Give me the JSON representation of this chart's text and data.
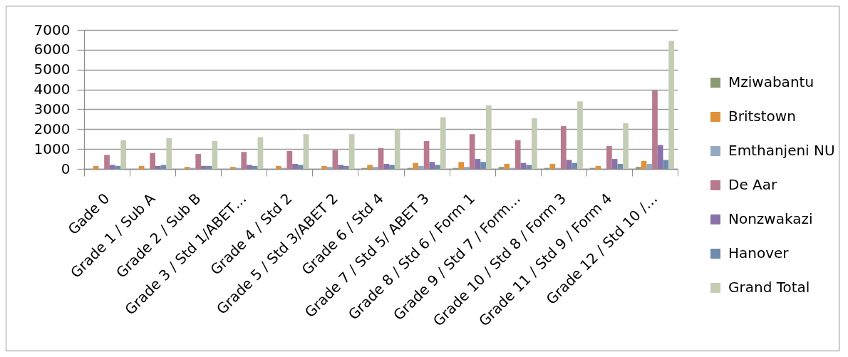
{
  "chart_data": {
    "type": "bar",
    "categories": [
      "Gade 0",
      "Grade 1 / Sub A",
      "Grade 2 / Sub B",
      "Grade 3 / Std 1/ABET…",
      "Grade 4 / Std 2",
      "Grade 5 / Std 3/ABET 2",
      "Grade 6 / Std 4",
      "Grade 7 / Std 5/ ABET 3",
      "Grade 8 / Std 6 / Form 1",
      "Grade 9 / Std 7 / Form…",
      "Grade 10 / Std 8 / Form 3",
      "Grade 11 / Std 9 / Form 4",
      "Grade 12 / Std 10 /…"
    ],
    "series": [
      {
        "name": "Mziwabantu",
        "color": "#8a9b74",
        "values": [
          0,
          0,
          0,
          0,
          0,
          0,
          50,
          50,
          50,
          100,
          50,
          50,
          100
        ]
      },
      {
        "name": "Britstown",
        "color": "#e0923a",
        "values": [
          150,
          150,
          100,
          100,
          150,
          150,
          200,
          300,
          350,
          250,
          250,
          150,
          400
        ]
      },
      {
        "name": "Emthanjeni NU",
        "color": "#95a9c2",
        "values": [
          0,
          0,
          50,
          50,
          50,
          100,
          100,
          150,
          100,
          50,
          50,
          0,
          250
        ]
      },
      {
        "name": "De Aar",
        "color": "#b87a8e",
        "values": [
          700,
          800,
          750,
          850,
          900,
          950,
          1050,
          1400,
          1750,
          1450,
          2150,
          1150,
          3950
        ]
      },
      {
        "name": "Nonzwakazi",
        "color": "#8a72aa",
        "values": [
          200,
          150,
          150,
          200,
          250,
          200,
          250,
          350,
          500,
          300,
          450,
          500,
          1200
        ]
      },
      {
        "name": "Hanover",
        "color": "#6f8bae",
        "values": [
          150,
          200,
          150,
          150,
          200,
          150,
          200,
          200,
          350,
          200,
          300,
          250,
          450
        ]
      },
      {
        "name": "Grand Total",
        "color": "#c3cdb4",
        "values": [
          1450,
          1550,
          1400,
          1600,
          1750,
          1750,
          2000,
          2600,
          3200,
          2550,
          3400,
          2300,
          6450
        ]
      }
    ],
    "ylim": [
      0,
      7000
    ],
    "yticks": [
      0,
      1000,
      2000,
      3000,
      4000,
      5000,
      6000,
      7000
    ],
    "grid": "y",
    "legend": "right"
  }
}
